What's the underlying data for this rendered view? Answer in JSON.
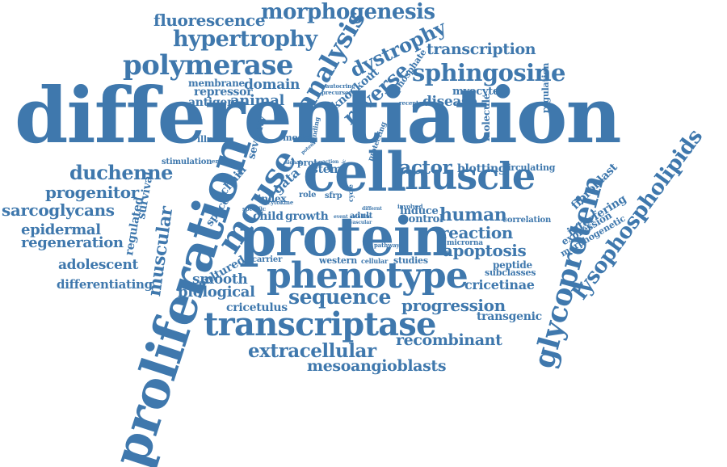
{
  "colors": {
    "word": "#3f78ad",
    "background": "#ffffff"
  },
  "words": [
    {
      "id": "differentiation",
      "text": "differentiation"
    },
    {
      "id": "protein",
      "text": "protein"
    },
    {
      "id": "cell",
      "text": "cell"
    },
    {
      "id": "muscle",
      "text": "muscle"
    },
    {
      "id": "proliferation",
      "text": "proliferation"
    },
    {
      "id": "phenotype",
      "text": "phenotype"
    },
    {
      "id": "transcriptase",
      "text": "transcriptase"
    },
    {
      "id": "glycoprotein",
      "text": "glycoprotein"
    },
    {
      "id": "lysophospholipids",
      "text": "lysophospholipids"
    },
    {
      "id": "mouse",
      "text": "mouse"
    },
    {
      "id": "polymerase",
      "text": "polymerase"
    },
    {
      "id": "morphogenesis",
      "text": "morphogenesis"
    },
    {
      "id": "hypertrophy",
      "text": "hypertrophy"
    },
    {
      "id": "fluorescence",
      "text": "fluorescence"
    },
    {
      "id": "analysis",
      "text": "analysis"
    },
    {
      "id": "dystrophy",
      "text": "dystrophy"
    },
    {
      "id": "transcription",
      "text": "transcription"
    },
    {
      "id": "sphingosine",
      "text": "sphingosine"
    },
    {
      "id": "reverse",
      "text": "reverse"
    },
    {
      "id": "knockout",
      "text": "knockout"
    },
    {
      "id": "phosphate",
      "text": "phosphate"
    },
    {
      "id": "myocyte",
      "text": "myocyte"
    },
    {
      "id": "disease",
      "text": "disease"
    },
    {
      "id": "regulation",
      "text": "regulation"
    },
    {
      "id": "membrane",
      "text": "membrane"
    },
    {
      "id": "domain",
      "text": "domain"
    },
    {
      "id": "repressor",
      "text": "repressor"
    },
    {
      "id": "antigen",
      "text": "antigen"
    },
    {
      "id": "animal",
      "text": "animal"
    },
    {
      "id": "autocrine",
      "text": "autocrine"
    },
    {
      "id": "precursor",
      "text": "precursor"
    },
    {
      "id": "receptor",
      "text": "receptor"
    },
    {
      "id": "sequence",
      "text": "sequence"
    },
    {
      "id": "progression",
      "text": "progression"
    },
    {
      "id": "extracellular",
      "text": "extracellular"
    },
    {
      "id": "mesoangioblasts",
      "text": "mesoangioblasts"
    },
    {
      "id": "recombinant",
      "text": "recombinant"
    },
    {
      "id": "transgenic",
      "text": "transgenic"
    },
    {
      "id": "cricetinae",
      "text": "cricetinae"
    },
    {
      "id": "subclasses",
      "text": "subclasses"
    },
    {
      "id": "peptide",
      "text": "peptide"
    },
    {
      "id": "apoptosis",
      "text": "apoptosis"
    },
    {
      "id": "reaction",
      "text": "reaction"
    },
    {
      "id": "human",
      "text": "human"
    },
    {
      "id": "induce",
      "text": "induce"
    },
    {
      "id": "control",
      "text": "control"
    },
    {
      "id": "correlation",
      "text": "correlation"
    },
    {
      "id": "microrna",
      "text": "microrna"
    },
    {
      "id": "factor",
      "text": "factor"
    },
    {
      "id": "blotting",
      "text": "blotting"
    },
    {
      "id": "circulating",
      "text": "circulating"
    },
    {
      "id": "fibroblast",
      "text": "fibroblast"
    },
    {
      "id": "interfering",
      "text": "interfering"
    },
    {
      "id": "expression",
      "text": "expression"
    },
    {
      "id": "morphogenetic",
      "text": "morphogenetic"
    },
    {
      "id": "duchenne",
      "text": "duchenne"
    },
    {
      "id": "progenitor",
      "text": "progenitor"
    },
    {
      "id": "sarcoglycans",
      "text": "sarcoglycans"
    },
    {
      "id": "epidermal",
      "text": "epidermal"
    },
    {
      "id": "regeneration",
      "text": "regeneration"
    },
    {
      "id": "adolescent",
      "text": "adolescent"
    },
    {
      "id": "differentiating",
      "text": "differentiating"
    },
    {
      "id": "stimulation",
      "text": "stimulation"
    },
    {
      "id": "illness",
      "text": "illness"
    },
    {
      "id": "survival",
      "text": "survival"
    },
    {
      "id": "regulated",
      "text": "regulated"
    },
    {
      "id": "muscular",
      "text": "muscular"
    },
    {
      "id": "space",
      "text": "space"
    },
    {
      "id": "chain",
      "text": "chain"
    },
    {
      "id": "severity",
      "text": "severity"
    },
    {
      "id": "model",
      "text": "model"
    },
    {
      "id": "embryo",
      "text": "embryo"
    },
    {
      "id": "gata",
      "text": "gata"
    },
    {
      "id": "proto",
      "text": "proto"
    },
    {
      "id": "stem",
      "text": "stem"
    },
    {
      "id": "index",
      "text": "index"
    },
    {
      "id": "role",
      "text": "role"
    },
    {
      "id": "sfrp",
      "text": "sfrp"
    },
    {
      "id": "cycle",
      "text": "cycle"
    },
    {
      "id": "child",
      "text": "child"
    },
    {
      "id": "growth",
      "text": "growth"
    },
    {
      "id": "adult",
      "text": "adult"
    },
    {
      "id": "cultured",
      "text": "cultured"
    },
    {
      "id": "carrier",
      "text": "carrier"
    },
    {
      "id": "western",
      "text": "western"
    },
    {
      "id": "cellular",
      "text": "cellular"
    },
    {
      "id": "studies",
      "text": "studies"
    },
    {
      "id": "smooth",
      "text": "smooth"
    },
    {
      "id": "biological",
      "text": "biological"
    },
    {
      "id": "cricetulus",
      "text": "cricetulus"
    },
    {
      "id": "involved",
      "text": "involved"
    },
    {
      "id": "protecting",
      "text": "protecting"
    },
    {
      "id": "molecule",
      "text": "molecule"
    },
    {
      "id": "binding",
      "text": "binding"
    },
    {
      "id": "specific",
      "text": "specific"
    },
    {
      "id": "pathway",
      "text": "pathway"
    },
    {
      "id": "satellite",
      "text": "satellite"
    },
    {
      "id": "vascular",
      "text": "vascular"
    },
    {
      "id": "action",
      "text": "action"
    },
    {
      "id": "cytokine",
      "text": "cytokine"
    },
    {
      "id": "signal",
      "text": "signal"
    },
    {
      "id": "potent",
      "text": "potent"
    },
    {
      "id": "mitotic",
      "text": "mitotic"
    },
    {
      "id": "event",
      "text": "event"
    },
    {
      "id": "different",
      "text": "differnt"
    }
  ]
}
